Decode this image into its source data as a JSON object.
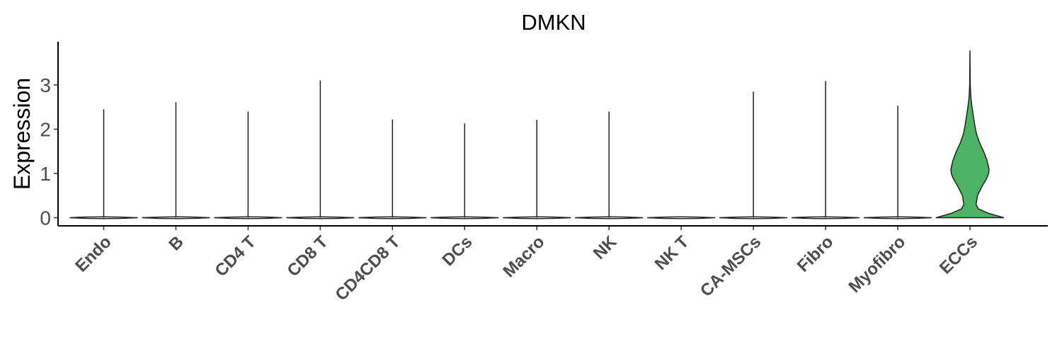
{
  "chart_data": {
    "type": "violin",
    "title": "DMKN",
    "xlabel": "",
    "ylabel": "Expression",
    "ylim": [
      -0.18,
      3.88
    ],
    "yticks": [
      0,
      1,
      2,
      3
    ],
    "grid": false,
    "legend": "none",
    "categories": [
      "Endo",
      "B",
      "CD4 T",
      "CD8 T",
      "CD4CD8 T",
      "DCs",
      "Macro",
      "NK",
      "NK T",
      "CA-MSCs",
      "Fibro",
      "Myofibro",
      "ECCs"
    ],
    "max_values": [
      2.45,
      2.61,
      2.4,
      3.1,
      2.22,
      2.13,
      2.21,
      2.4,
      0,
      2.85,
      3.09,
      2.53,
      3.78
    ],
    "highlight_category": "ECCs",
    "highlight_color": "#4db363",
    "ecc_density": [
      {
        "y": 0.0,
        "w": 1.0
      },
      {
        "y": 0.1,
        "w": 0.55
      },
      {
        "y": 0.2,
        "w": 0.25
      },
      {
        "y": 0.3,
        "w": 0.18
      },
      {
        "y": 0.5,
        "w": 0.22
      },
      {
        "y": 0.7,
        "w": 0.35
      },
      {
        "y": 0.9,
        "w": 0.5
      },
      {
        "y": 1.0,
        "w": 0.55
      },
      {
        "y": 1.1,
        "w": 0.56
      },
      {
        "y": 1.3,
        "w": 0.5
      },
      {
        "y": 1.5,
        "w": 0.4
      },
      {
        "y": 1.7,
        "w": 0.28
      },
      {
        "y": 1.9,
        "w": 0.19
      },
      {
        "y": 2.1,
        "w": 0.14
      },
      {
        "y": 2.3,
        "w": 0.1
      },
      {
        "y": 2.5,
        "w": 0.06
      },
      {
        "y": 2.7,
        "w": 0.03
      },
      {
        "y": 3.0,
        "w": 0.008
      },
      {
        "y": 3.78,
        "w": 0.0
      }
    ]
  }
}
